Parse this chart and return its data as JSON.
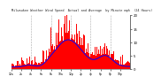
{
  "title": "Milwaukee Weather Wind Speed  Actual and Average  by Minute mph  (24 Hours)",
  "background_color": "#ffffff",
  "plot_bg_color": "#ffffff",
  "grid_color": "#aaaaaa",
  "bar_color": "#ff0000",
  "line_color": "#0000ff",
  "ylim": [
    0,
    20
  ],
  "n_points": 1440,
  "vline_positions": [
    240,
    480,
    720,
    960,
    1200
  ],
  "seed": 42
}
